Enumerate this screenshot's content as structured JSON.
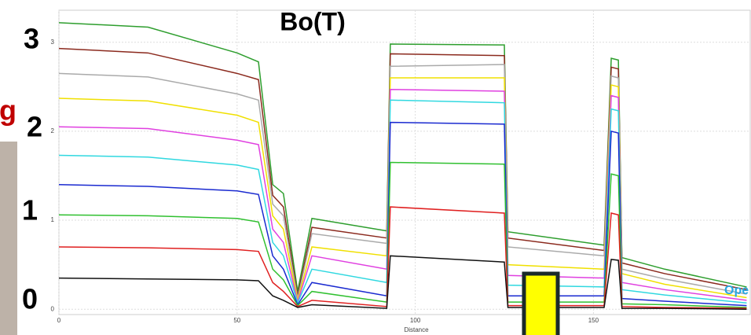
{
  "chart_data": {
    "type": "line",
    "title": "Bo(T)",
    "x_label": "Distance",
    "x": [
      0,
      25,
      50,
      56,
      60,
      63,
      67,
      71,
      92,
      93,
      125,
      126,
      153,
      155,
      157,
      158,
      170,
      193
    ],
    "series": [
      {
        "color": "#2e9e2e",
        "values": [
          3.22,
          3.17,
          2.88,
          2.78,
          1.4,
          1.3,
          0.2,
          1.02,
          0.88,
          2.98,
          2.97,
          0.87,
          0.72,
          2.82,
          2.8,
          0.58,
          0.45,
          0.25
        ]
      },
      {
        "color": "#8b2a1e",
        "values": [
          2.93,
          2.88,
          2.65,
          2.58,
          1.28,
          1.15,
          0.15,
          0.92,
          0.8,
          2.87,
          2.85,
          0.8,
          0.66,
          2.72,
          2.7,
          0.52,
          0.4,
          0.22
        ]
      },
      {
        "color": "#aaaaaa",
        "values": [
          2.65,
          2.61,
          2.42,
          2.35,
          1.18,
          1.05,
          0.12,
          0.85,
          0.74,
          2.73,
          2.75,
          0.7,
          0.6,
          2.62,
          2.6,
          0.45,
          0.34,
          0.17
        ]
      },
      {
        "color": "#f0e000",
        "values": [
          2.37,
          2.34,
          2.18,
          2.1,
          1.05,
          0.9,
          0.1,
          0.7,
          0.6,
          2.6,
          2.6,
          0.5,
          0.45,
          2.52,
          2.5,
          0.4,
          0.28,
          0.13
        ]
      },
      {
        "color": "#e040e0",
        "values": [
          2.05,
          2.03,
          1.9,
          1.85,
          0.9,
          0.75,
          0.08,
          0.6,
          0.45,
          2.47,
          2.45,
          0.38,
          0.35,
          2.4,
          2.38,
          0.3,
          0.22,
          0.1
        ]
      },
      {
        "color": "#30d8e0",
        "values": [
          1.73,
          1.71,
          1.62,
          1.57,
          0.75,
          0.6,
          0.07,
          0.45,
          0.3,
          2.35,
          2.32,
          0.27,
          0.25,
          2.25,
          2.23,
          0.22,
          0.16,
          0.07
        ]
      },
      {
        "color": "#1a2ad0",
        "values": [
          1.4,
          1.38,
          1.33,
          1.29,
          0.6,
          0.45,
          0.05,
          0.3,
          0.15,
          2.1,
          2.08,
          0.15,
          0.15,
          2.0,
          1.98,
          0.12,
          0.09,
          0.04
        ]
      },
      {
        "color": "#30c030",
        "values": [
          1.06,
          1.05,
          1.02,
          0.98,
          0.45,
          0.33,
          0.04,
          0.2,
          0.08,
          1.65,
          1.63,
          0.08,
          0.08,
          1.52,
          1.5,
          0.06,
          0.05,
          0.02
        ]
      },
      {
        "color": "#e02020",
        "values": [
          0.7,
          0.69,
          0.67,
          0.65,
          0.3,
          0.2,
          0.03,
          0.1,
          0.03,
          1.15,
          1.08,
          0.04,
          0.04,
          1.08,
          1.06,
          0.03,
          0.02,
          0.01
        ]
      },
      {
        "color": "#111111",
        "values": [
          0.35,
          0.34,
          0.33,
          0.32,
          0.15,
          0.1,
          0.02,
          0.05,
          0.01,
          0.6,
          0.53,
          0.02,
          0.02,
          0.56,
          0.55,
          0.01,
          0.01,
          0
        ]
      }
    ],
    "xlim": [
      0,
      194
    ],
    "ylim": [
      -0.06,
      3.36
    ],
    "xticks": [
      0,
      50,
      100,
      150
    ],
    "yticks": [
      0,
      1,
      2,
      3
    ],
    "grid": true,
    "annotations": [
      "3",
      "2",
      "1",
      "0",
      "g",
      "Ope"
    ]
  }
}
